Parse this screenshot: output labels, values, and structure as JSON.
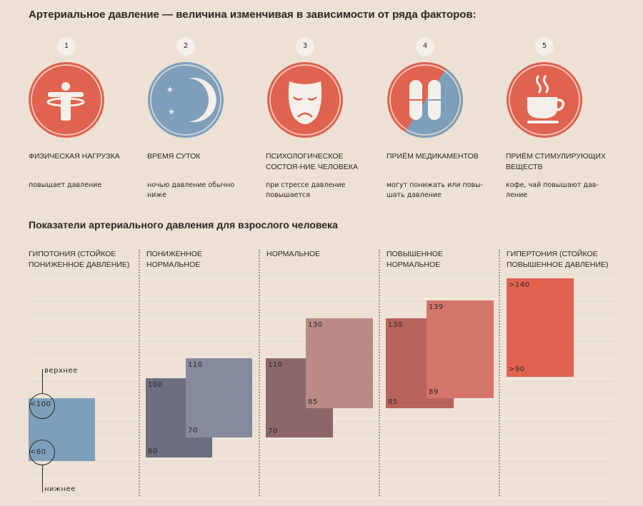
{
  "title": "Артериальное давление — величина изменчивая в зависимости от ряда факторов:",
  "factors": [
    {
      "num": "1",
      "icon": "hula-hoop-person-icon",
      "color": "#e0634f",
      "title": "Физическая нагрузка",
      "desc": "повышает давление"
    },
    {
      "num": "2",
      "icon": "moon-stars-icon",
      "color": "#7d9fbb",
      "title": "Время суток",
      "desc": "ночью давление обычно ниже"
    },
    {
      "num": "3",
      "icon": "sad-mask-icon",
      "color": "#e0634f",
      "title": "Психологическое состоя-ние человека",
      "desc": "при стрессе давление повышается"
    },
    {
      "num": "4",
      "icon": "pills-icon",
      "color": "#e0634f",
      "title": "Приём медикаментов",
      "desc": "могут понижать или повы-шать давление"
    },
    {
      "num": "5",
      "icon": "coffee-cup-icon",
      "color": "#e0634f",
      "title": "Приём стимулирующих веществ",
      "desc": "кофе, чай повышают дав-ление"
    }
  ],
  "subtitle": "Показатели артериального давления для взрослого человека",
  "legend": {
    "upper": "верхнее",
    "lower": "нижнее"
  },
  "categories": [
    {
      "name": "Гипотония (стойкое пониженное давление)",
      "bars": [
        {
          "upper": "<100",
          "lower": "<60",
          "color": "#7d9fbb"
        }
      ]
    },
    {
      "name": "Пониженное нормальное",
      "bars": [
        {
          "upper": "100",
          "lower": "60",
          "color": "#6b6f7f"
        },
        {
          "upper": "110",
          "lower": "70",
          "color": "#858a9f"
        }
      ]
    },
    {
      "name": "Нормальное",
      "bars": [
        {
          "upper": "110",
          "lower": "70",
          "color": "#8c6769"
        },
        {
          "upper": "130",
          "lower": "85",
          "color": "#b98a87"
        }
      ]
    },
    {
      "name": "Повышенное нормальное",
      "bars": [
        {
          "upper": "130",
          "lower": "85",
          "color": "#b8625c"
        },
        {
          "upper": "139",
          "lower": "89",
          "color": "#d4756a"
        }
      ]
    },
    {
      "name": "Гипертония (стойкое повышенное давление)",
      "bars": [
        {
          "upper": ">140",
          "lower": ">90",
          "color": "#e0634f"
        }
      ]
    }
  ]
}
